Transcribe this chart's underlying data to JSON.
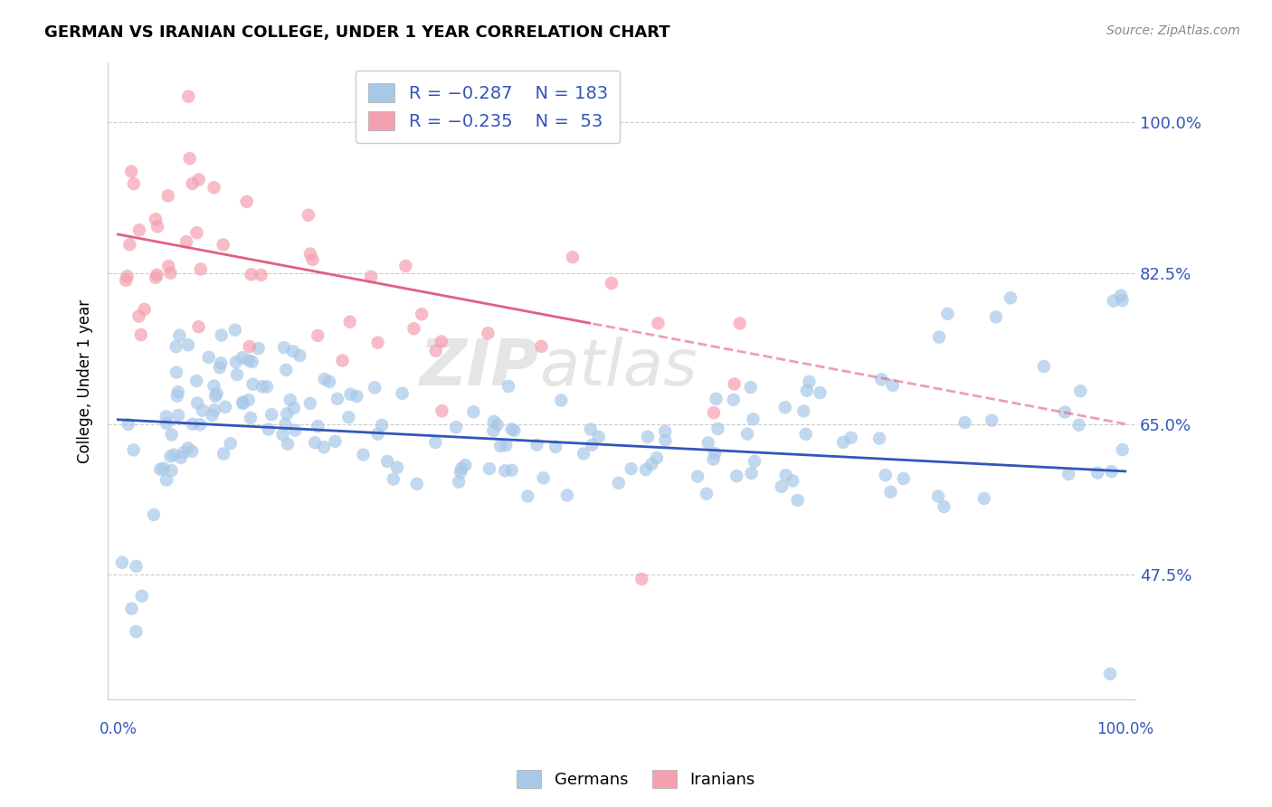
{
  "title": "GERMAN VS IRANIAN COLLEGE, UNDER 1 YEAR CORRELATION CHART",
  "source": "Source: ZipAtlas.com",
  "ylabel": "College, Under 1 year",
  "legend_label1": "Germans",
  "legend_label2": "Iranians",
  "r1": -0.287,
  "n1": 183,
  "r2": -0.235,
  "n2": 53,
  "blue_color": "#A8C8E8",
  "blue_line_color": "#3355BB",
  "pink_color": "#F4A0B0",
  "pink_line_color": "#E06080",
  "watermark_zip": "ZIP",
  "watermark_atlas": "atlas",
  "yticks": [
    47.5,
    65.0,
    82.5,
    100.0
  ],
  "ylim": [
    33.0,
    107.0
  ],
  "xlim": [
    -1.0,
    101.0
  ],
  "blue_line_start_y": 65.5,
  "blue_line_end_y": 59.5,
  "pink_line_start_y": 87.0,
  "pink_line_end_y": 65.0,
  "pink_solid_end_x": 47.0
}
